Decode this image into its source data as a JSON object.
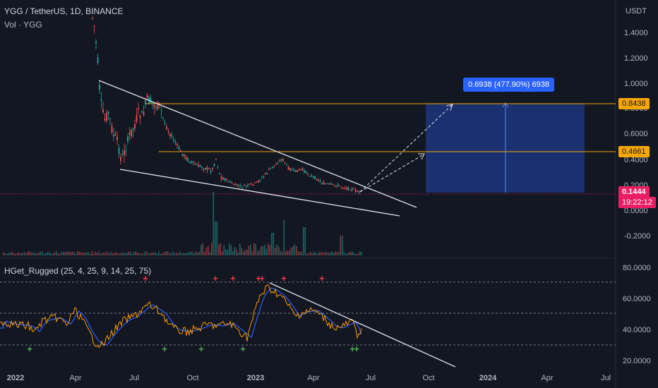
{
  "header": {
    "symbol": "YGG / TetherUS, 1D, BINANCE",
    "volume_label": "Vol · YGG",
    "indicator_label": "HGet_Rugged (25, 4, 25, 9, 14, 25, 75)"
  },
  "price_axis": {
    "currency": "USDT",
    "ticks": [
      "1.4000",
      "1.2000",
      "1.0000",
      "0.8000",
      "0.6000",
      "0.4000",
      "0.2000",
      "0.0000",
      "-0.2000"
    ]
  },
  "indicator_axis": {
    "ticks": [
      "80.0000",
      "60.0000",
      "40.0000",
      "20.0000"
    ]
  },
  "time_axis": {
    "ticks": [
      "2022",
      "Apr",
      "Jul",
      "Oct",
      "2023",
      "Apr",
      "Jul",
      "Oct",
      "2024",
      "Apr",
      "Jul"
    ]
  },
  "levels": {
    "upper": "0.8438",
    "lower": "0.4661",
    "current": "0.1444",
    "countdown": "19:22:12"
  },
  "measure_label": "0.6938 (477.90%) 6938",
  "markers": {
    "buy": "+",
    "sell": "+"
  },
  "colors": {
    "background": "#131722",
    "level_line": "#f7a600",
    "current_price": "#e91e63",
    "target_box": "#1e3a8a",
    "measure_badge": "#2962ff",
    "oscillator": "#ff9800",
    "signal": "#2962ff",
    "buy_marker": "#4caf50",
    "sell_marker": "#f23645"
  }
}
